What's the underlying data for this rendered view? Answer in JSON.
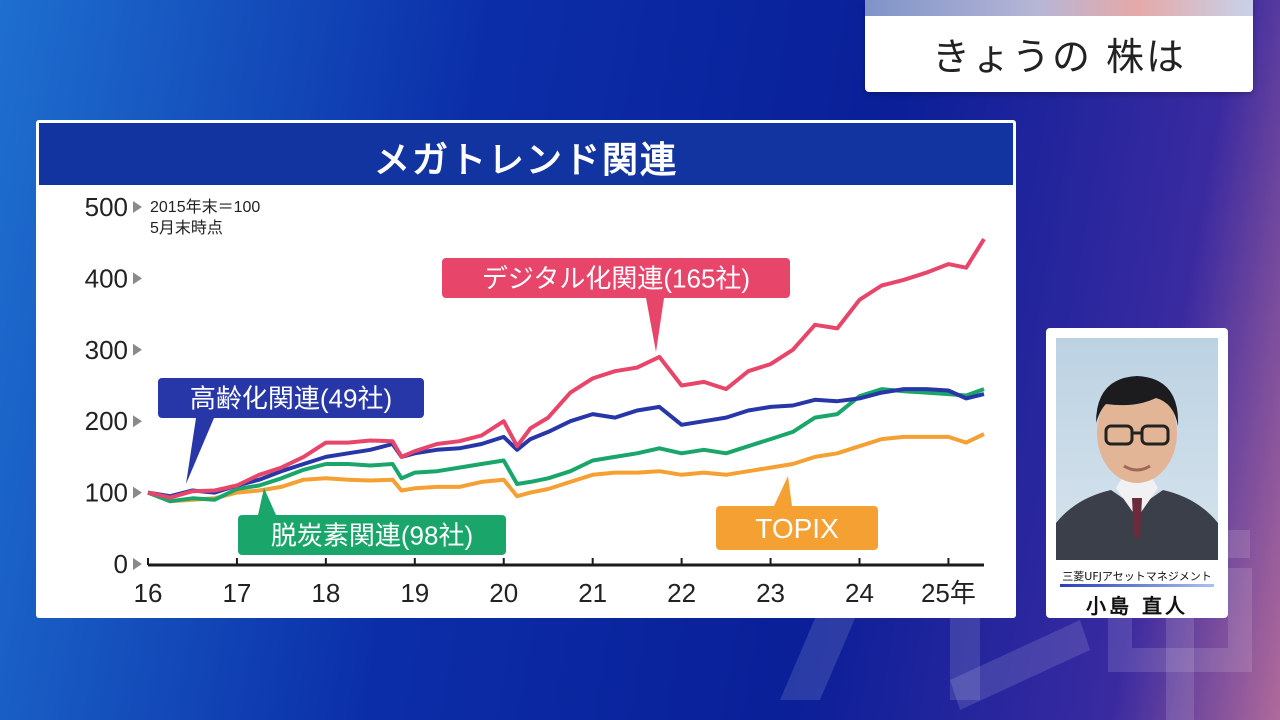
{
  "topic": {
    "label": "きょうの 株は"
  },
  "chart_data": {
    "type": "line",
    "title": "メガトレンド関連",
    "note_lines": [
      "2015年末＝100",
      "5月末時点"
    ],
    "xlim": [
      2016,
      2025.4
    ],
    "ylim": [
      0,
      500
    ],
    "y_ticks": [
      "0",
      "100",
      "200",
      "300",
      "400",
      "500"
    ],
    "x_ticks": [
      "16",
      "17",
      "18",
      "19",
      "20",
      "21",
      "22",
      "23",
      "24",
      "25年"
    ],
    "x_tick_values": [
      2016,
      2017,
      2018,
      2019,
      2020,
      2021,
      2022,
      2023,
      2024,
      2025
    ],
    "series": [
      {
        "name": "デジタル化関連(165社)",
        "color": "#e8456a",
        "x": [
          2016,
          2016.25,
          2016.5,
          2016.75,
          2017,
          2017.25,
          2017.5,
          2017.75,
          2018,
          2018.25,
          2018.5,
          2018.75,
          2018.85,
          2019,
          2019.25,
          2019.5,
          2019.75,
          2020,
          2020.15,
          2020.3,
          2020.5,
          2020.75,
          2021,
          2021.25,
          2021.5,
          2021.75,
          2022,
          2022.25,
          2022.5,
          2022.75,
          2023,
          2023.25,
          2023.5,
          2023.75,
          2024,
          2024.25,
          2024.5,
          2024.75,
          2025,
          2025.2,
          2025.4
        ],
        "values": [
          100,
          93,
          102,
          103,
          110,
          125,
          135,
          150,
          170,
          170,
          173,
          172,
          150,
          158,
          168,
          172,
          180,
          200,
          165,
          190,
          205,
          240,
          260,
          270,
          275,
          290,
          250,
          255,
          245,
          270,
          280,
          300,
          335,
          330,
          370,
          390,
          398,
          408,
          420,
          415,
          455
        ]
      },
      {
        "name": "高齢化関連(49社)",
        "color": "#2737a8",
        "x": [
          2016,
          2016.25,
          2016.5,
          2016.75,
          2017,
          2017.25,
          2017.5,
          2017.75,
          2018,
          2018.25,
          2018.5,
          2018.75,
          2018.85,
          2019,
          2019.25,
          2019.5,
          2019.75,
          2020,
          2020.15,
          2020.3,
          2020.5,
          2020.75,
          2021,
          2021.25,
          2021.5,
          2021.75,
          2022,
          2022.25,
          2022.5,
          2022.75,
          2023,
          2023.25,
          2023.5,
          2023.75,
          2024,
          2024.25,
          2024.5,
          2024.75,
          2025,
          2025.2,
          2025.4
        ],
        "values": [
          100,
          95,
          103,
          100,
          110,
          118,
          130,
          140,
          150,
          155,
          160,
          168,
          150,
          155,
          160,
          162,
          168,
          178,
          160,
          175,
          185,
          200,
          210,
          205,
          215,
          220,
          195,
          200,
          205,
          215,
          220,
          222,
          230,
          228,
          232,
          240,
          245,
          245,
          243,
          232,
          238
        ]
      },
      {
        "name": "脱炭素関連(98社)",
        "color": "#1aa66a",
        "x": [
          2016,
          2016.25,
          2016.5,
          2016.75,
          2017,
          2017.25,
          2017.5,
          2017.75,
          2018,
          2018.25,
          2018.5,
          2018.75,
          2018.85,
          2019,
          2019.25,
          2019.5,
          2019.75,
          2020,
          2020.15,
          2020.3,
          2020.5,
          2020.75,
          2021,
          2021.25,
          2021.5,
          2021.75,
          2022,
          2022.25,
          2022.5,
          2022.75,
          2023,
          2023.25,
          2023.5,
          2023.75,
          2024,
          2024.25,
          2024.5,
          2024.75,
          2025,
          2025.2,
          2025.4
        ],
        "values": [
          100,
          88,
          92,
          90,
          105,
          110,
          120,
          132,
          140,
          140,
          138,
          140,
          120,
          128,
          130,
          135,
          140,
          145,
          112,
          115,
          120,
          130,
          145,
          150,
          155,
          162,
          155,
          160,
          155,
          165,
          175,
          185,
          205,
          210,
          235,
          245,
          242,
          240,
          238,
          236,
          245
        ]
      },
      {
        "name": "TOPIX",
        "color": "#f5a032",
        "x": [
          2016,
          2016.25,
          2016.5,
          2016.75,
          2017,
          2017.25,
          2017.5,
          2017.75,
          2018,
          2018.25,
          2018.5,
          2018.75,
          2018.85,
          2019,
          2019.25,
          2019.5,
          2019.75,
          2020,
          2020.15,
          2020.3,
          2020.5,
          2020.75,
          2021,
          2021.25,
          2021.5,
          2021.75,
          2022,
          2022.25,
          2022.5,
          2022.75,
          2023,
          2023.25,
          2023.5,
          2023.75,
          2024,
          2024.25,
          2024.5,
          2024.75,
          2025,
          2025.2,
          2025.4
        ],
        "values": [
          100,
          88,
          90,
          92,
          100,
          103,
          108,
          118,
          120,
          118,
          117,
          118,
          103,
          106,
          108,
          108,
          115,
          118,
          95,
          100,
          105,
          115,
          125,
          128,
          128,
          130,
          125,
          128,
          125,
          130,
          135,
          140,
          150,
          155,
          165,
          175,
          178,
          178,
          178,
          170,
          182
        ]
      }
    ]
  },
  "person": {
    "company": "三菱UFJアセットマネジメント",
    "name": "小島 直人"
  }
}
